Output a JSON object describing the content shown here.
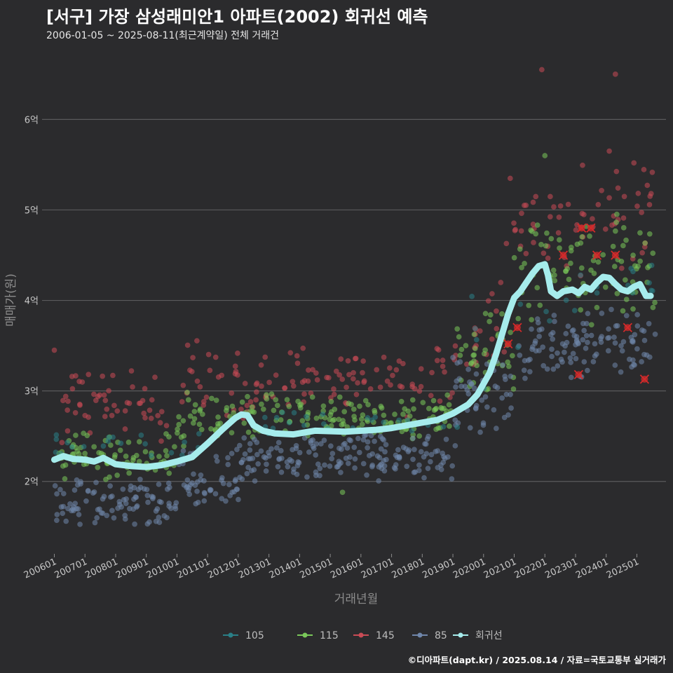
{
  "header": {
    "title": "[서구] 가장 삼성래미안1 아파트(2002) 회귀선 예측",
    "subtitle": "2006-01-05 ~ 2025-08-11(최근계약일) 전체 거래건"
  },
  "footer": {
    "credit": "©디아파트(dapt.kr) / 2025.08.14 / 자료=국토교통부 실거래가"
  },
  "colors": {
    "background": "#2b2b2d",
    "grid": "#5a5a5c",
    "s105": "#2a7f86",
    "s115": "#7ac85a",
    "s145": "#c94b55",
    "s85": "#6f86aa",
    "regression": "#a6ecec",
    "highlight": "#d42a2a"
  },
  "chart_data": {
    "type": "scatter",
    "title": "[서구] 가장 삼성래미안1 아파트(2002) 회귀선 예측",
    "subtitle": "2006-01-05 ~ 2025-08-11(최근계약일) 전체 거래건",
    "xlabel": "거래년월",
    "ylabel": "매매가(원)",
    "xlim": [
      "2005-08",
      "2025-12"
    ],
    "ylim": [
      1.2,
      6.7
    ],
    "y_unit": "억",
    "y_ticks": [
      {
        "value": 2,
        "label": "2억"
      },
      {
        "value": 3,
        "label": "3억"
      },
      {
        "value": 4,
        "label": "4억"
      },
      {
        "value": 5,
        "label": "5억"
      },
      {
        "value": 6,
        "label": "6억"
      }
    ],
    "x_ticks": [
      "200601",
      "200701",
      "200801",
      "200901",
      "201001",
      "201101",
      "201201",
      "201301",
      "201401",
      "201501",
      "201601",
      "201701",
      "201801",
      "201901",
      "202001",
      "202101",
      "202201",
      "202301",
      "202401",
      "202501"
    ],
    "grid": "horizontal",
    "legend_position": "bottom",
    "series": [
      {
        "name": "105",
        "key": "s105",
        "bands": [
          {
            "start": 2006.0,
            "end": 2011.5,
            "lo": 2.2,
            "hi": 2.6
          },
          {
            "start": 2011.5,
            "end": 2019.5,
            "lo": 2.45,
            "hi": 2.8
          },
          {
            "start": 2019.5,
            "end": 2021.5,
            "lo": 3.0,
            "hi": 4.2
          },
          {
            "start": 2021.5,
            "end": 2025.6,
            "lo": 3.7,
            "hi": 4.6
          }
        ],
        "count": 70
      },
      {
        "name": "115",
        "key": "s115",
        "bands": [
          {
            "start": 2006.0,
            "end": 2010.0,
            "lo": 2.0,
            "hi": 2.55
          },
          {
            "start": 2010.0,
            "end": 2012.0,
            "lo": 2.3,
            "hi": 3.1
          },
          {
            "start": 2012.0,
            "end": 2019.0,
            "lo": 2.45,
            "hi": 3.0
          },
          {
            "start": 2019.0,
            "end": 2021.0,
            "lo": 2.8,
            "hi": 4.0
          },
          {
            "start": 2021.0,
            "end": 2025.6,
            "lo": 3.7,
            "hi": 5.0
          }
        ],
        "count": 380
      },
      {
        "name": "145",
        "key": "s145",
        "bands": [
          {
            "start": 2006.0,
            "end": 2010.0,
            "lo": 2.4,
            "hi": 3.3
          },
          {
            "start": 2010.0,
            "end": 2012.5,
            "lo": 2.6,
            "hi": 3.6
          },
          {
            "start": 2012.5,
            "end": 2019.0,
            "lo": 2.7,
            "hi": 3.5
          },
          {
            "start": 2019.0,
            "end": 2020.7,
            "lo": 3.0,
            "hi": 4.3
          },
          {
            "start": 2020.7,
            "end": 2025.6,
            "lo": 4.2,
            "hi": 5.6
          }
        ],
        "count": 260
      },
      {
        "name": "85",
        "key": "s85",
        "bands": [
          {
            "start": 2006.0,
            "end": 2010.0,
            "lo": 1.5,
            "hi": 2.05
          },
          {
            "start": 2010.0,
            "end": 2012.0,
            "lo": 1.7,
            "hi": 2.4
          },
          {
            "start": 2012.0,
            "end": 2019.0,
            "lo": 2.0,
            "hi": 2.55
          },
          {
            "start": 2019.0,
            "end": 2021.0,
            "lo": 2.3,
            "hi": 3.4
          },
          {
            "start": 2021.0,
            "end": 2025.6,
            "lo": 3.0,
            "hi": 4.0
          }
        ],
        "count": 480
      }
    ],
    "outliers": [
      {
        "x": 2021.9,
        "y": 6.55,
        "key": "s145"
      },
      {
        "x": 2024.3,
        "y": 6.5,
        "key": "s145"
      },
      {
        "x": 2022.0,
        "y": 5.6,
        "key": "s115"
      },
      {
        "x": 2024.1,
        "y": 5.65,
        "key": "s145"
      },
      {
        "x": 2006.0,
        "y": 3.45,
        "key": "s145"
      },
      {
        "x": 2012.0,
        "y": 1.8,
        "key": "s85"
      },
      {
        "x": 2015.4,
        "y": 1.88,
        "key": "s115"
      }
    ],
    "highlights": [
      {
        "x": 2022.6,
        "y": 4.5
      },
      {
        "x": 2023.2,
        "y": 4.8
      },
      {
        "x": 2023.5,
        "y": 4.8
      },
      {
        "x": 2023.7,
        "y": 4.5
      },
      {
        "x": 2024.3,
        "y": 4.5
      },
      {
        "x": 2021.1,
        "y": 3.7
      },
      {
        "x": 2020.8,
        "y": 3.52
      },
      {
        "x": 2024.7,
        "y": 3.7
      },
      {
        "x": 2023.1,
        "y": 3.18
      },
      {
        "x": 2025.25,
        "y": 3.13
      }
    ],
    "regression": {
      "name": "회귀선",
      "x": [
        2006.0,
        2006.3,
        2006.6,
        2007.0,
        2007.3,
        2007.6,
        2008.0,
        2008.5,
        2009.0,
        2009.5,
        2010.0,
        2010.5,
        2011.0,
        2011.5,
        2011.9,
        2012.1,
        2012.3,
        2012.5,
        2012.8,
        2013.2,
        2013.8,
        2014.5,
        2015.5,
        2016.5,
        2017.0,
        2017.5,
        2018.0,
        2018.5,
        2019.0,
        2019.5,
        2019.8,
        2020.0,
        2020.2,
        2020.4,
        2020.6,
        2020.8,
        2021.0,
        2021.2,
        2021.4,
        2021.6,
        2021.8,
        2022.0,
        2022.1,
        2022.2,
        2022.4,
        2022.6,
        2022.9,
        2023.1,
        2023.3,
        2023.5,
        2023.7,
        2023.9,
        2024.1,
        2024.3,
        2024.5,
        2024.7,
        2024.9,
        2025.1,
        2025.3,
        2025.45
      ],
      "y": [
        2.24,
        2.28,
        2.25,
        2.24,
        2.22,
        2.26,
        2.19,
        2.17,
        2.16,
        2.18,
        2.22,
        2.27,
        2.42,
        2.58,
        2.7,
        2.74,
        2.73,
        2.62,
        2.56,
        2.53,
        2.52,
        2.56,
        2.55,
        2.57,
        2.59,
        2.62,
        2.65,
        2.68,
        2.75,
        2.85,
        2.96,
        3.08,
        3.2,
        3.4,
        3.62,
        3.85,
        4.03,
        4.1,
        4.2,
        4.3,
        4.38,
        4.4,
        4.28,
        4.1,
        4.05,
        4.1,
        4.12,
        4.08,
        4.15,
        4.12,
        4.2,
        4.26,
        4.25,
        4.18,
        4.12,
        4.1,
        4.15,
        4.18,
        4.05,
        4.05
      ]
    }
  }
}
